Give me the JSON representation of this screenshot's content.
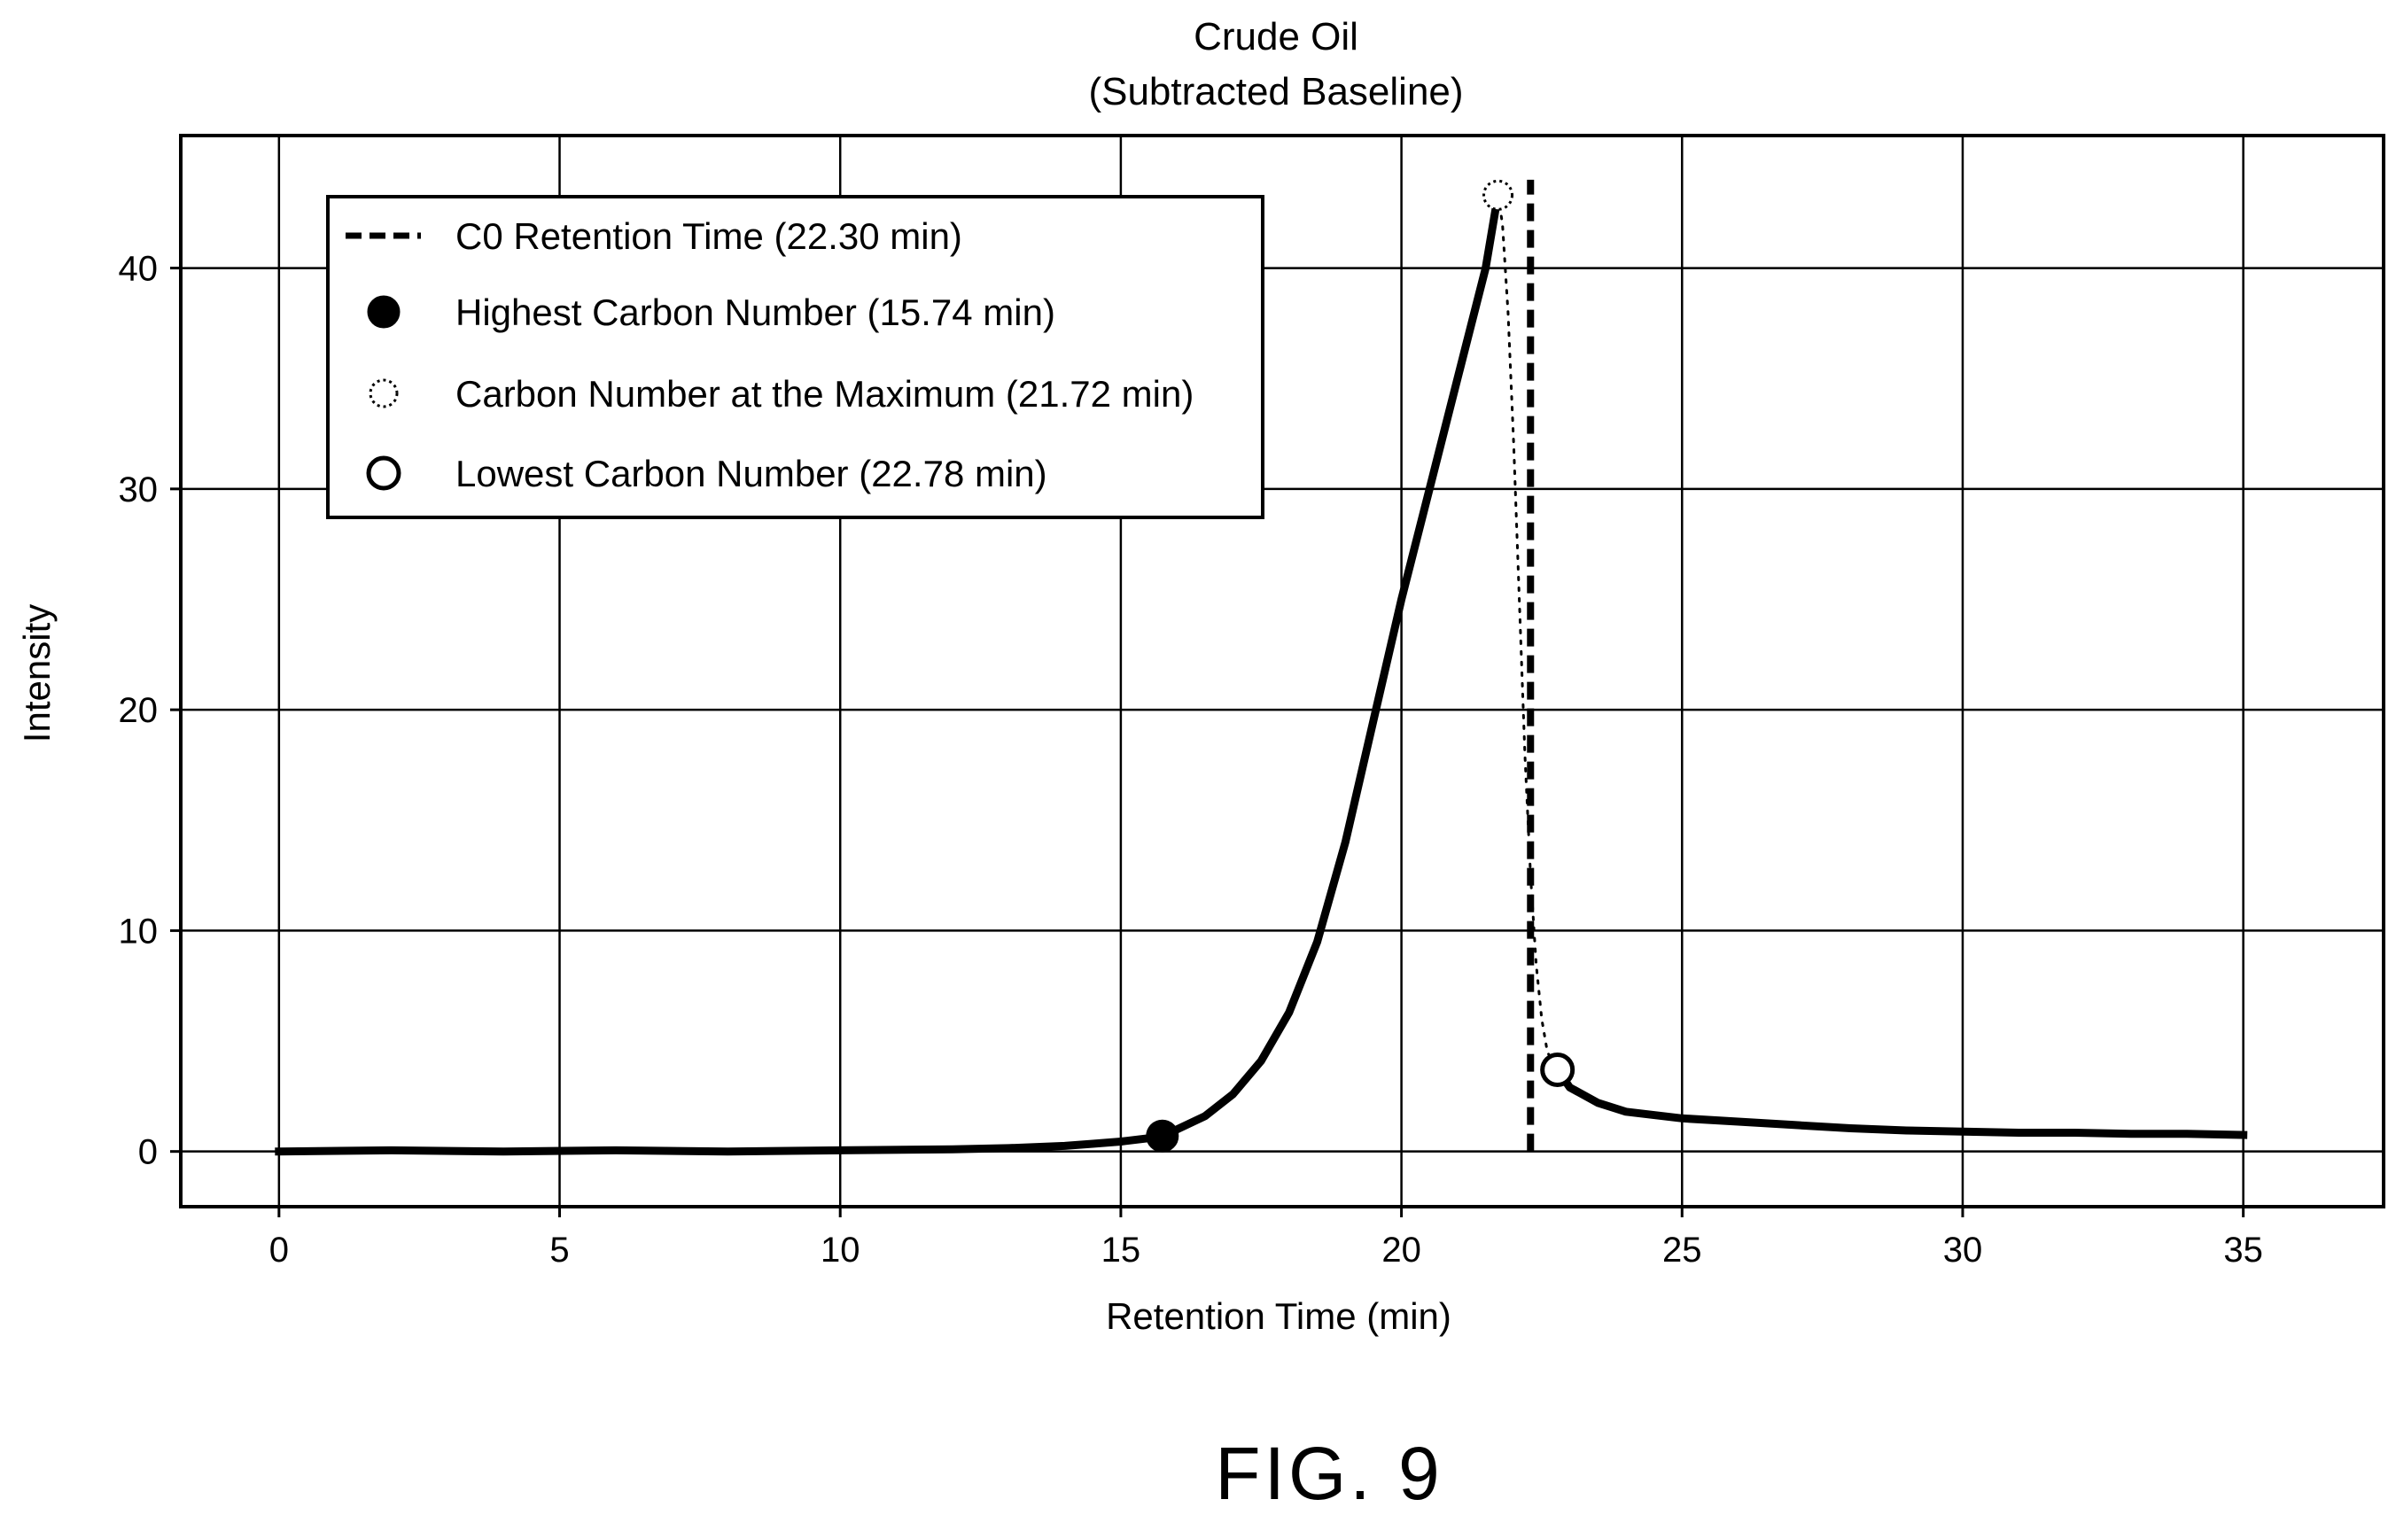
{
  "chart_data": {
    "type": "line",
    "title": "Crude Oil",
    "subtitle": "(Subtracted Baseline)",
    "xlabel": "Retention Time (min)",
    "ylabel": "Intensity",
    "xlim": [
      -1.75,
      37.5
    ],
    "ylim": [
      -2.5,
      46
    ],
    "x_ticks": [
      0,
      5,
      10,
      15,
      20,
      25,
      30,
      35
    ],
    "y_ticks": [
      0,
      10,
      20,
      30,
      40
    ],
    "grid": true,
    "legend_position": "upper-left",
    "series": [
      {
        "style": "solid-thick",
        "color": "#000000",
        "x": [
          0,
          2,
          4,
          6,
          8,
          10,
          12,
          13,
          14,
          14.5,
          15,
          15.5,
          16,
          16.5,
          17,
          17.5,
          18,
          18.5,
          19,
          19.5,
          20,
          20.5,
          21,
          21.5,
          21.72
        ],
        "y": [
          0.0,
          0.05,
          0.0,
          0.05,
          0.0,
          0.05,
          0.1,
          0.15,
          0.25,
          0.35,
          0.45,
          0.6,
          1.0,
          1.6,
          2.6,
          4.1,
          6.3,
          9.5,
          14.0,
          19.5,
          25.0,
          30.0,
          35.0,
          40.0,
          43.3
        ]
      },
      {
        "style": "dotted-plus",
        "color": "#000000",
        "x": [
          21.72,
          21.8,
          21.9,
          22.0,
          22.1,
          22.2,
          22.3,
          22.4,
          22.5,
          22.6,
          22.78
        ],
        "y": [
          43.3,
          42.0,
          38.0,
          32.0,
          25.0,
          18.0,
          12.5,
          8.5,
          6.0,
          4.5,
          3.7
        ]
      },
      {
        "style": "solid-thick",
        "color": "#000000",
        "x": [
          22.78,
          23.0,
          23.5,
          24,
          25,
          26,
          27,
          28,
          29,
          30,
          31,
          32,
          33,
          34,
          35
        ],
        "y": [
          3.7,
          2.9,
          2.2,
          1.8,
          1.5,
          1.35,
          1.2,
          1.05,
          0.95,
          0.9,
          0.85,
          0.85,
          0.8,
          0.8,
          0.75
        ]
      }
    ],
    "markers": [
      {
        "name": "highest-carbon",
        "x": 15.74,
        "y": 0.7,
        "style": "filled-circle"
      },
      {
        "name": "max-carbon",
        "x": 21.72,
        "y": 43.3,
        "style": "dotted-circle"
      },
      {
        "name": "lowest-carbon",
        "x": 22.78,
        "y": 3.7,
        "style": "open-circle"
      }
    ],
    "vline": {
      "x": 22.3,
      "y_from": 0,
      "y_to": 44,
      "style": "dashed"
    },
    "legend": [
      {
        "label": "C0 Retention Time (22.30 min)",
        "symbol": "dashed-line"
      },
      {
        "label": "Highest Carbon Number (15.74 min)",
        "symbol": "filled-circle"
      },
      {
        "label": "Carbon Number at the Maximum (21.72 min)",
        "symbol": "dotted-circle"
      },
      {
        "label": "Lowest Carbon Number (22.78 min)",
        "symbol": "open-circle"
      }
    ]
  },
  "figure_label": "FIG. 9"
}
